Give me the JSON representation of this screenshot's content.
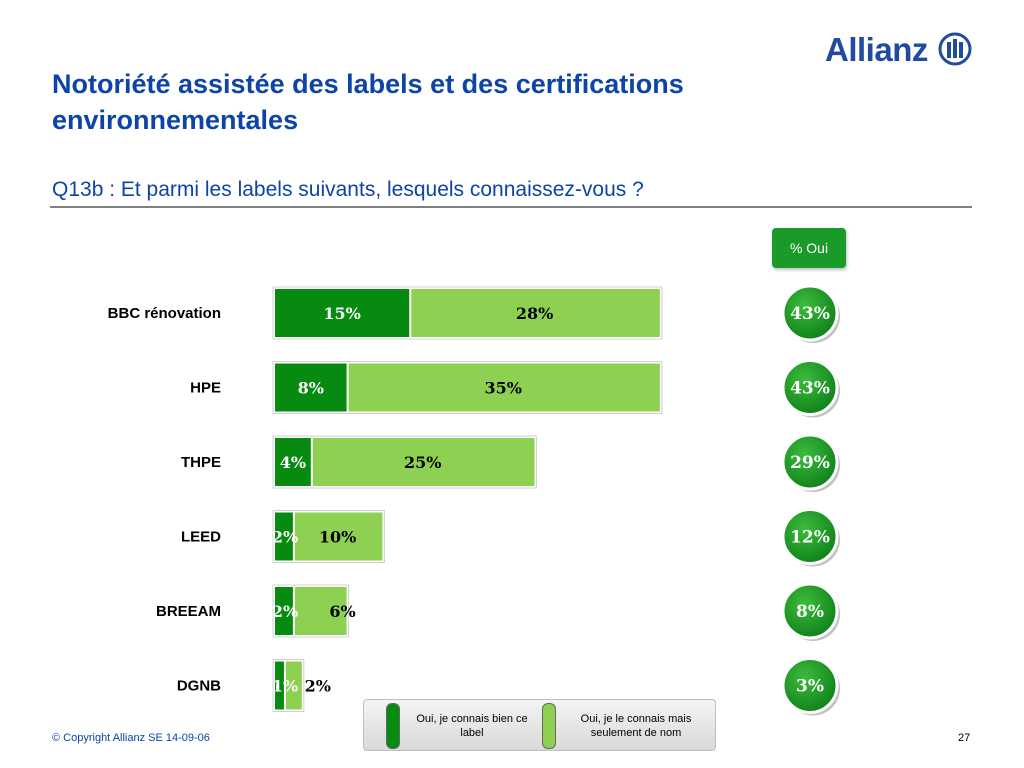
{
  "logo": {
    "text": "Allianz"
  },
  "slide": {
    "title": "Notoriété assistée des labels et des certifications environnementales",
    "subtitle": "Q13b : Et parmi les labels suivants, lesquels connaissez-vous ?",
    "footer": "© Copyright Allianz SE 14-09-06",
    "page_number": "27"
  },
  "colors": {
    "brand_blue": "#0c44a8",
    "dark_green": "#078a10",
    "light_green": "#8ed152",
    "badge_green": "#1a9a28"
  },
  "legend": [
    {
      "label": "Oui, je connais bien ce label",
      "color": "#078a10"
    },
    {
      "label": "Oui, je le connais mais seulement de nom",
      "color": "#8ed152"
    }
  ],
  "chart_data": {
    "type": "bar",
    "orientation": "horizontal",
    "stacked": true,
    "total_header": "% Oui",
    "categories": [
      "BBC rénovation",
      "HPE",
      "THPE",
      "LEED",
      "BREEAM",
      "DGNB"
    ],
    "series": [
      {
        "name": "Oui, je connais bien ce label",
        "values": [
          15,
          8,
          4,
          2,
          2,
          1
        ],
        "labels": [
          "15%",
          "8%",
          "4%",
          "2%",
          "2%",
          "1%"
        ]
      },
      {
        "name": "Oui, je le connais mais seulement de nom",
        "values": [
          28,
          35,
          25,
          10,
          6,
          2
        ],
        "labels": [
          "28%",
          "35%",
          "25%",
          "10%",
          "6%",
          "2%"
        ]
      }
    ],
    "totals": [
      43,
      43,
      29,
      12,
      8,
      3
    ],
    "total_labels": [
      "43%",
      "43%",
      "29%",
      "12%",
      "8%",
      "3%"
    ]
  }
}
